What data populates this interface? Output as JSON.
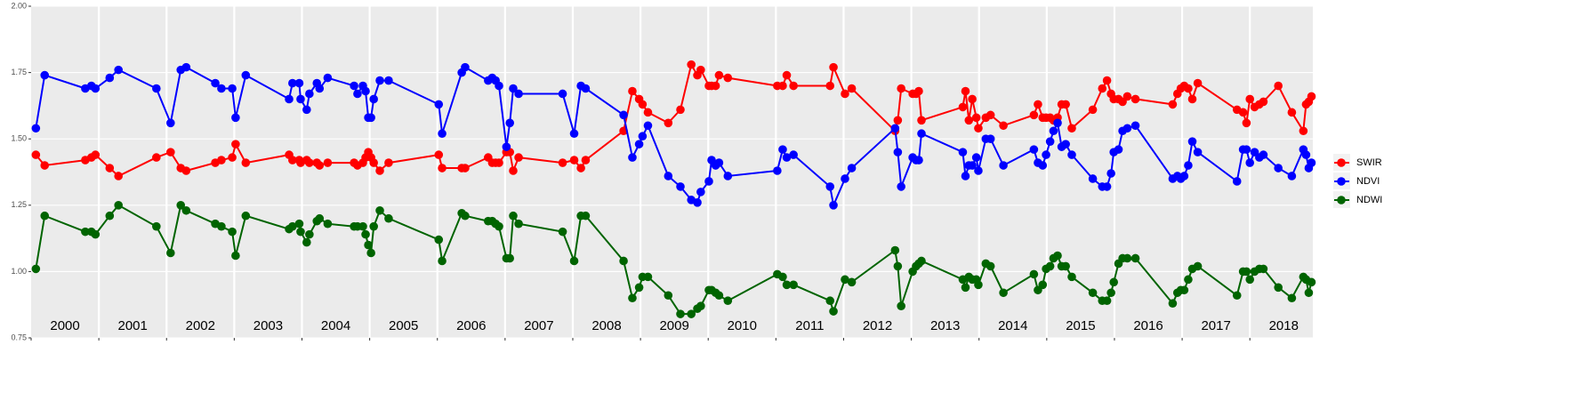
{
  "chart_data": {
    "type": "line",
    "x": [
      2000.07,
      2000.2,
      2000.8,
      2000.89,
      2000.95,
      2001.16,
      2001.29,
      2001.85,
      2002.06,
      2002.21,
      2002.29,
      2002.72,
      2002.81,
      2002.97,
      2003.02,
      2003.17,
      2003.81,
      2003.86,
      2003.96,
      2003.98,
      2004.07,
      2004.11,
      2004.22,
      2004.26,
      2004.38,
      2004.77,
      2004.82,
      2004.9,
      2004.94,
      2004.98,
      2005.02,
      2005.06,
      2005.15,
      2005.28,
      2006.02,
      2006.07,
      2006.36,
      2006.41,
      2006.75,
      2006.81,
      2006.86,
      2006.91,
      2007.02,
      2007.07,
      2007.12,
      2007.2,
      2007.85,
      2008.02,
      2008.12,
      2008.19,
      2008.75,
      2008.88,
      2008.98,
      2009.03,
      2009.11,
      2009.41,
      2009.59,
      2009.75,
      2009.84,
      2009.89,
      2010.01,
      2010.05,
      2010.11,
      2010.16,
      2010.29,
      2011.02,
      2011.1,
      2011.16,
      2011.26,
      2011.8,
      2011.85,
      2012.02,
      2012.12,
      2012.76,
      2012.8,
      2012.85,
      2013.02,
      2013.07,
      2013.11,
      2013.15,
      2013.76,
      2013.8,
      2013.85,
      2013.9,
      2013.96,
      2013.99,
      2014.1,
      2014.17,
      2014.36,
      2014.81,
      2014.87,
      2014.94,
      2014.99,
      2015.05,
      2015.1,
      2015.16,
      2015.22,
      2015.28,
      2015.37,
      2015.68,
      2015.82,
      2015.89,
      2015.95,
      2015.99,
      2016.06,
      2016.12,
      2016.19,
      2016.31,
      2016.86,
      2016.93,
      2016.98,
      2017.03,
      2017.09,
      2017.15,
      2017.23,
      2017.81,
      2017.9,
      2017.95,
      2018.0,
      2018.07,
      2018.14,
      2018.2,
      2018.42,
      2018.62,
      2018.79,
      2018.83,
      2018.87,
      2018.91
    ],
    "series": [
      {
        "name": "SWIR",
        "color": "#ff0000",
        "values": [
          1.44,
          1.4,
          1.42,
          1.43,
          1.44,
          1.39,
          1.36,
          1.43,
          1.45,
          1.39,
          1.38,
          1.41,
          1.42,
          1.43,
          1.48,
          1.41,
          1.44,
          1.42,
          1.42,
          1.41,
          1.42,
          1.41,
          1.41,
          1.4,
          1.41,
          1.41,
          1.4,
          1.41,
          1.43,
          1.45,
          1.43,
          1.41,
          1.38,
          1.41,
          1.44,
          1.39,
          1.39,
          1.39,
          1.43,
          1.41,
          1.41,
          1.41,
          1.45,
          1.45,
          1.38,
          1.43,
          1.41,
          1.42,
          1.39,
          1.42,
          1.53,
          1.68,
          1.65,
          1.63,
          1.6,
          1.56,
          1.61,
          1.78,
          1.74,
          1.76,
          1.7,
          1.7,
          1.7,
          1.74,
          1.73,
          1.7,
          1.7,
          1.74,
          1.7,
          1.7,
          1.77,
          1.67,
          1.69,
          1.53,
          1.57,
          1.69,
          1.67,
          1.67,
          1.68,
          1.57,
          1.62,
          1.68,
          1.57,
          1.65,
          1.58,
          1.54,
          1.58,
          1.59,
          1.55,
          1.59,
          1.63,
          1.58,
          1.58,
          1.58,
          1.57,
          1.58,
          1.63,
          1.63,
          1.54,
          1.61,
          1.69,
          1.72,
          1.67,
          1.65,
          1.65,
          1.64,
          1.66,
          1.65,
          1.63,
          1.67,
          1.69,
          1.7,
          1.69,
          1.65,
          1.71,
          1.61,
          1.6,
          1.56,
          1.65,
          1.62,
          1.63,
          1.64,
          1.7,
          1.6,
          1.53,
          1.63,
          1.64,
          1.66
        ]
      },
      {
        "name": "NDVI",
        "color": "#0000ff",
        "values": [
          1.54,
          1.74,
          1.69,
          1.7,
          1.69,
          1.73,
          1.76,
          1.69,
          1.56,
          1.76,
          1.77,
          1.71,
          1.69,
          1.69,
          1.58,
          1.74,
          1.65,
          1.71,
          1.71,
          1.65,
          1.61,
          1.67,
          1.71,
          1.69,
          1.73,
          1.7,
          1.67,
          1.7,
          1.68,
          1.58,
          1.58,
          1.65,
          1.72,
          1.72,
          1.63,
          1.52,
          1.75,
          1.77,
          1.72,
          1.73,
          1.72,
          1.7,
          1.47,
          1.56,
          1.69,
          1.67,
          1.67,
          1.52,
          1.7,
          1.69,
          1.59,
          1.43,
          1.48,
          1.51,
          1.55,
          1.36,
          1.32,
          1.27,
          1.26,
          1.3,
          1.34,
          1.42,
          1.4,
          1.41,
          1.36,
          1.38,
          1.46,
          1.43,
          1.44,
          1.32,
          1.25,
          1.35,
          1.39,
          1.54,
          1.45,
          1.32,
          1.43,
          1.42,
          1.42,
          1.52,
          1.45,
          1.36,
          1.4,
          1.4,
          1.43,
          1.38,
          1.5,
          1.5,
          1.4,
          1.46,
          1.41,
          1.4,
          1.44,
          1.49,
          1.53,
          1.56,
          1.47,
          1.48,
          1.44,
          1.35,
          1.32,
          1.32,
          1.37,
          1.45,
          1.46,
          1.53,
          1.54,
          1.55,
          1.35,
          1.36,
          1.35,
          1.36,
          1.4,
          1.49,
          1.45,
          1.34,
          1.46,
          1.46,
          1.41,
          1.45,
          1.43,
          1.44,
          1.39,
          1.36,
          1.46,
          1.44,
          1.39,
          1.41
        ]
      },
      {
        "name": "NDWI",
        "color": "#006400",
        "values": [
          1.01,
          1.21,
          1.15,
          1.15,
          1.14,
          1.21,
          1.25,
          1.17,
          1.07,
          1.25,
          1.23,
          1.18,
          1.17,
          1.15,
          1.06,
          1.21,
          1.16,
          1.17,
          1.18,
          1.15,
          1.11,
          1.14,
          1.19,
          1.2,
          1.18,
          1.17,
          1.17,
          1.17,
          1.14,
          1.1,
          1.07,
          1.17,
          1.23,
          1.2,
          1.12,
          1.04,
          1.22,
          1.21,
          1.19,
          1.19,
          1.18,
          1.17,
          1.05,
          1.05,
          1.21,
          1.18,
          1.15,
          1.04,
          1.21,
          1.21,
          1.04,
          0.9,
          0.94,
          0.98,
          0.98,
          0.91,
          0.84,
          0.84,
          0.86,
          0.87,
          0.93,
          0.93,
          0.92,
          0.91,
          0.89,
          0.99,
          0.98,
          0.95,
          0.95,
          0.89,
          0.85,
          0.97,
          0.96,
          1.08,
          1.02,
          0.87,
          1.0,
          1.02,
          1.03,
          1.04,
          0.97,
          0.94,
          0.98,
          0.97,
          0.97,
          0.95,
          1.03,
          1.02,
          0.92,
          0.99,
          0.93,
          0.95,
          1.01,
          1.02,
          1.05,
          1.06,
          1.02,
          1.02,
          0.98,
          0.92,
          0.89,
          0.89,
          0.92,
          0.96,
          1.03,
          1.05,
          1.05,
          1.05,
          0.88,
          0.92,
          0.93,
          0.93,
          0.97,
          1.01,
          1.02,
          0.91,
          1.0,
          1.0,
          0.97,
          1.0,
          1.01,
          1.01,
          0.94,
          0.9,
          0.98,
          0.97,
          0.92,
          0.96
        ]
      }
    ],
    "xlim": [
      2000,
      2018.93
    ],
    "xticks": [
      2000,
      2001,
      2002,
      2003,
      2004,
      2005,
      2006,
      2007,
      2008,
      2009,
      2010,
      2011,
      2012,
      2013,
      2014,
      2015,
      2016,
      2017,
      2018
    ],
    "ylim": [
      0.75,
      2.0
    ],
    "yticks": [
      0.75,
      {
        "value": 1.0,
        "label": "1.00"
      },
      1.25,
      {
        "value": 1.5,
        "label": "1.50"
      },
      1.75,
      {
        "value": 2.0,
        "label": "2.00"
      }
    ],
    "grid": true,
    "legend": "right"
  }
}
